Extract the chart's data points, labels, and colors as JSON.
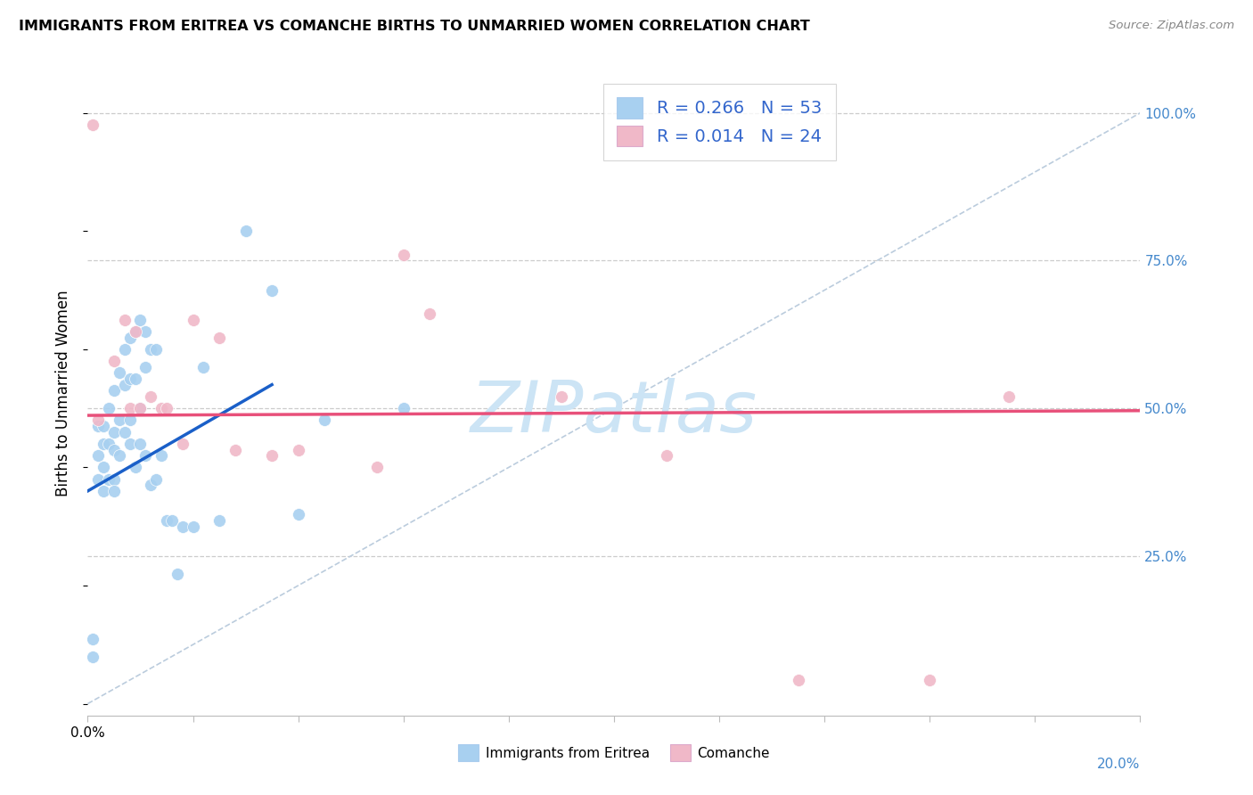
{
  "title": "IMMIGRANTS FROM ERITREA VS COMANCHE BIRTHS TO UNMARRIED WOMEN CORRELATION CHART",
  "source": "Source: ZipAtlas.com",
  "ylabel": "Births to Unmarried Women",
  "ytick_labels": [
    "100.0%",
    "75.0%",
    "50.0%",
    "25.0%"
  ],
  "ytick_values": [
    1.0,
    0.75,
    0.5,
    0.25
  ],
  "legend_blue_label": "Immigrants from Eritrea",
  "legend_pink_label": "Comanche",
  "blue_color": "#a8d0f0",
  "pink_color": "#f0b8c8",
  "blue_line_color": "#1a5fc8",
  "pink_line_color": "#e8507a",
  "blue_r": 0.266,
  "blue_n": 53,
  "pink_r": 0.014,
  "pink_n": 24,
  "xmin": 0.0,
  "xmax": 0.2,
  "ymin": -0.02,
  "ymax": 1.07,
  "blue_scatter_x": [
    0.001,
    0.001,
    0.002,
    0.002,
    0.002,
    0.003,
    0.003,
    0.003,
    0.003,
    0.004,
    0.004,
    0.004,
    0.005,
    0.005,
    0.005,
    0.005,
    0.005,
    0.006,
    0.006,
    0.006,
    0.007,
    0.007,
    0.007,
    0.008,
    0.008,
    0.008,
    0.008,
    0.009,
    0.009,
    0.009,
    0.01,
    0.01,
    0.01,
    0.011,
    0.011,
    0.011,
    0.012,
    0.012,
    0.013,
    0.013,
    0.014,
    0.015,
    0.016,
    0.017,
    0.018,
    0.02,
    0.022,
    0.025,
    0.03,
    0.035,
    0.04,
    0.045,
    0.06
  ],
  "blue_scatter_y": [
    0.08,
    0.11,
    0.38,
    0.42,
    0.47,
    0.44,
    0.47,
    0.4,
    0.36,
    0.5,
    0.44,
    0.38,
    0.53,
    0.46,
    0.43,
    0.38,
    0.36,
    0.56,
    0.48,
    0.42,
    0.6,
    0.54,
    0.46,
    0.62,
    0.55,
    0.48,
    0.44,
    0.63,
    0.55,
    0.4,
    0.65,
    0.5,
    0.44,
    0.63,
    0.57,
    0.42,
    0.6,
    0.37,
    0.6,
    0.38,
    0.42,
    0.31,
    0.31,
    0.22,
    0.3,
    0.3,
    0.57,
    0.31,
    0.8,
    0.7,
    0.32,
    0.48,
    0.5
  ],
  "pink_scatter_x": [
    0.001,
    0.002,
    0.005,
    0.007,
    0.008,
    0.009,
    0.01,
    0.012,
    0.014,
    0.015,
    0.018,
    0.02,
    0.025,
    0.028,
    0.035,
    0.04,
    0.055,
    0.06,
    0.065,
    0.09,
    0.11,
    0.135,
    0.16,
    0.175
  ],
  "pink_scatter_y": [
    0.98,
    0.48,
    0.58,
    0.65,
    0.5,
    0.63,
    0.5,
    0.52,
    0.5,
    0.5,
    0.44,
    0.65,
    0.62,
    0.43,
    0.42,
    0.43,
    0.4,
    0.76,
    0.66,
    0.52,
    0.42,
    0.04,
    0.04,
    0.52
  ],
  "blue_line_x0": 0.0,
  "blue_line_y0": 0.36,
  "blue_line_x1": 0.035,
  "blue_line_y1": 0.54,
  "pink_line_x0": 0.0,
  "pink_line_y0": 0.488,
  "pink_line_x1": 0.2,
  "pink_line_y1": 0.496,
  "watermark": "ZIPatlas",
  "watermark_color": "#cce4f5",
  "grid_color": "#cccccc",
  "diag_color": "#bbccdd"
}
